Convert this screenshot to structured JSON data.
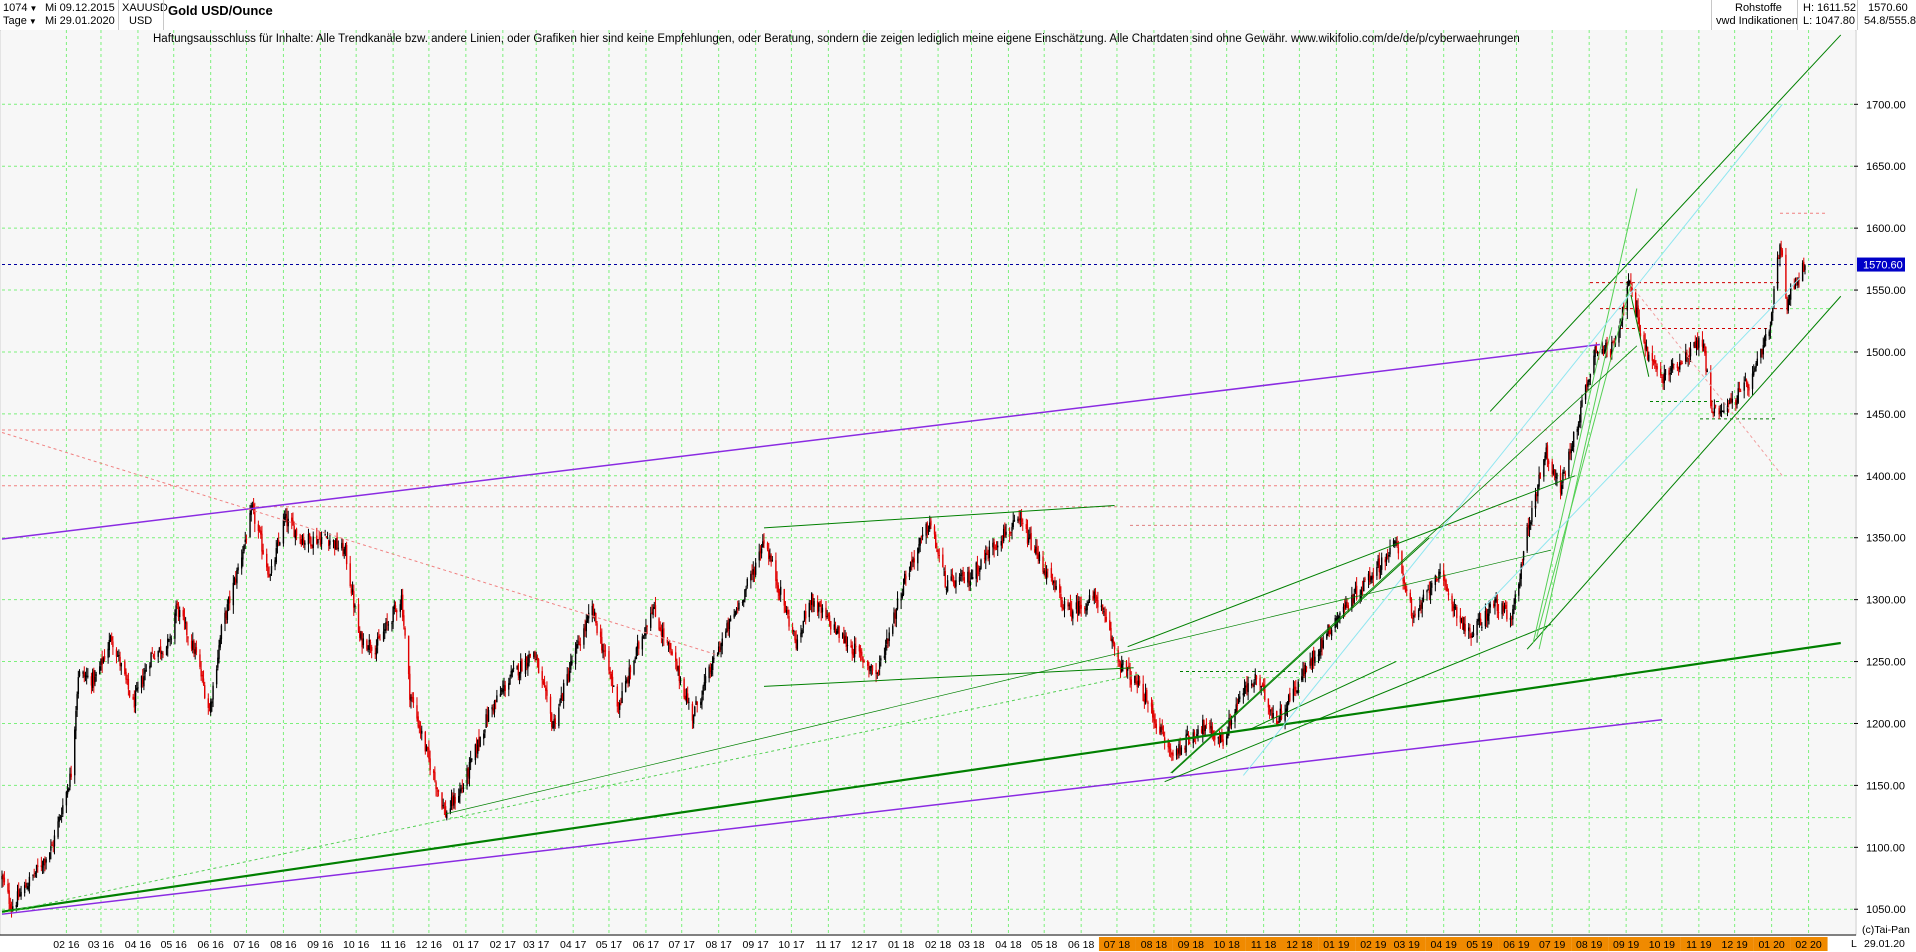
{
  "header": {
    "count": "1074",
    "period": "Tage",
    "date_from": "Mi 09.12.2015",
    "date_to": "Mi 29.01.2020",
    "symbol": "XAUUSD",
    "currency": "USD",
    "title": "Gold USD/Ounce",
    "category": "Rohstoffe",
    "source": "vwd Indikationen",
    "high_label": "H: 1611.52",
    "low_label": "L: 1047.80",
    "last_value": "1570.60",
    "range_label": "54.8/555.8"
  },
  "disclaimer": "Haftungsausschluss für Inhalte: Alle Trendkanäle bzw. andere Linien, oder Grafiken hier sind keine Empfehlungen, oder Beratung, sondern die zeigen lediglich meine eigene Einschätzung. Alle Chartdaten sind ohne Gewähr.  www.wikifolio.com/de/de/p/cyberwaehrungen",
  "footer": {
    "copyright": "(c)Tai-Pan",
    "end_date": "29.01.20",
    "l_label": "L"
  },
  "colors": {
    "up_candle": "#000000",
    "down_candle": "#e00000",
    "grid": "#7cf07c",
    "price_marker_bg": "#0000c8",
    "trend_green": "#008000",
    "trend_purple": "#8a2be2",
    "trend_cyan": "#8fe6f0",
    "highlight_orange": "#f08a00"
  },
  "chart_data": {
    "type": "candlestick",
    "title": "Gold USD/Ounce",
    "ylim": [
      1030,
      1760
    ],
    "y_ticks": [
      1050,
      1100,
      1150,
      1200,
      1250,
      1300,
      1350,
      1400,
      1450,
      1500,
      1550,
      1600,
      1650,
      1700
    ],
    "x_ticks": [
      "02 16",
      "03 16",
      "04 16",
      "05 16",
      "06 16",
      "07 16",
      "08 16",
      "09 16",
      "10 16",
      "11 16",
      "12 16",
      "01 17",
      "02 17",
      "03 17",
      "04 17",
      "05 17",
      "06 17",
      "07 17",
      "08 17",
      "09 17",
      "10 17",
      "11 17",
      "12 17",
      "01 18",
      "02 18",
      "03 18",
      "04 18",
      "05 18",
      "06 18",
      "07 18",
      "08 18",
      "09 18",
      "10 18",
      "11 18",
      "12 18",
      "01 19",
      "02 19",
      "03 19",
      "04 19",
      "05 19",
      "06 19",
      "07 19",
      "08 19",
      "09 19",
      "10 19",
      "11 19",
      "12 19",
      "01 20",
      "02 20"
    ],
    "highlighted_ticks": [
      "07 18",
      "08 18",
      "09 18",
      "10 18",
      "11 18",
      "12 18",
      "01 19",
      "02 19",
      "03 19",
      "04 19",
      "05 19",
      "06 19",
      "07 19",
      "08 19",
      "09 19",
      "10 19",
      "11 19",
      "12 19",
      "01 20",
      "02 20"
    ],
    "current_price": 1570.6,
    "high": 1611.52,
    "low": 1047.8,
    "price_path": [
      [
        "2015-12-09",
        1075
      ],
      [
        "2015-12-17",
        1052
      ],
      [
        "2016-01-05",
        1078
      ],
      [
        "2016-01-20",
        1100
      ],
      [
        "2016-02-05",
        1160
      ],
      [
        "2016-02-11",
        1240
      ],
      [
        "2016-02-25",
        1235
      ],
      [
        "2016-03-10",
        1270
      ],
      [
        "2016-03-28",
        1215
      ],
      [
        "2016-04-12",
        1255
      ],
      [
        "2016-04-28",
        1265
      ],
      [
        "2016-05-03",
        1295
      ],
      [
        "2016-05-20",
        1255
      ],
      [
        "2016-05-31",
        1210
      ],
      [
        "2016-06-10",
        1275
      ],
      [
        "2016-06-24",
        1325
      ],
      [
        "2016-07-06",
        1372
      ],
      [
        "2016-07-21",
        1318
      ],
      [
        "2016-08-02",
        1365
      ],
      [
        "2016-08-18",
        1348
      ],
      [
        "2016-09-07",
        1350
      ],
      [
        "2016-09-22",
        1338
      ],
      [
        "2016-10-04",
        1268
      ],
      [
        "2016-10-18",
        1262
      ],
      [
        "2016-11-08",
        1302
      ],
      [
        "2016-11-15",
        1225
      ],
      [
        "2016-12-01",
        1170
      ],
      [
        "2016-12-15",
        1127
      ],
      [
        "2016-12-30",
        1150
      ],
      [
        "2017-01-20",
        1208
      ],
      [
        "2017-02-08",
        1238
      ],
      [
        "2017-02-27",
        1258
      ],
      [
        "2017-03-15",
        1198
      ],
      [
        "2017-03-31",
        1250
      ],
      [
        "2017-04-17",
        1292
      ],
      [
        "2017-05-09",
        1214
      ],
      [
        "2017-06-06",
        1294
      ],
      [
        "2017-06-27",
        1244
      ],
      [
        "2017-07-10",
        1206
      ],
      [
        "2017-08-03",
        1265
      ],
      [
        "2017-08-29",
        1320
      ],
      [
        "2017-09-08",
        1350
      ],
      [
        "2017-09-25",
        1295
      ],
      [
        "2017-10-06",
        1262
      ],
      [
        "2017-10-16",
        1302
      ],
      [
        "2017-11-10",
        1272
      ],
      [
        "2017-12-12",
        1240
      ],
      [
        "2018-01-05",
        1320
      ],
      [
        "2018-01-25",
        1362
      ],
      [
        "2018-02-08",
        1312
      ],
      [
        "2018-02-28",
        1318
      ],
      [
        "2018-03-26",
        1352
      ],
      [
        "2018-04-11",
        1362
      ],
      [
        "2018-05-08",
        1312
      ],
      [
        "2018-05-21",
        1290
      ],
      [
        "2018-06-14",
        1302
      ],
      [
        "2018-07-03",
        1250
      ],
      [
        "2018-07-23",
        1224
      ],
      [
        "2018-08-16",
        1174
      ],
      [
        "2018-09-10",
        1198
      ],
      [
        "2018-09-28",
        1186
      ],
      [
        "2018-10-12",
        1222
      ],
      [
        "2018-10-26",
        1236
      ],
      [
        "2018-11-12",
        1202
      ],
      [
        "2018-12-03",
        1238
      ],
      [
        "2018-12-31",
        1284
      ],
      [
        "2019-01-30",
        1320
      ],
      [
        "2019-02-20",
        1345
      ],
      [
        "2019-03-07",
        1282
      ],
      [
        "2019-03-26",
        1322
      ],
      [
        "2019-04-23",
        1270
      ],
      [
        "2019-05-14",
        1298
      ],
      [
        "2019-05-28",
        1282
      ],
      [
        "2019-06-07",
        1340
      ],
      [
        "2019-06-25",
        1420
      ],
      [
        "2019-07-08",
        1390
      ],
      [
        "2019-07-19",
        1430
      ],
      [
        "2019-08-07",
        1505
      ],
      [
        "2019-08-19",
        1500
      ],
      [
        "2019-09-04",
        1555
      ],
      [
        "2019-09-17",
        1502
      ],
      [
        "2019-10-01",
        1478
      ],
      [
        "2019-10-15",
        1492
      ],
      [
        "2019-11-04",
        1510
      ],
      [
        "2019-11-12",
        1452
      ],
      [
        "2019-11-27",
        1458
      ],
      [
        "2019-12-16",
        1478
      ],
      [
        "2019-12-31",
        1520
      ],
      [
        "2020-01-08",
        1588
      ],
      [
        "2020-01-14",
        1540
      ],
      [
        "2020-01-23",
        1562
      ],
      [
        "2020-01-29",
        1570.6
      ]
    ]
  }
}
